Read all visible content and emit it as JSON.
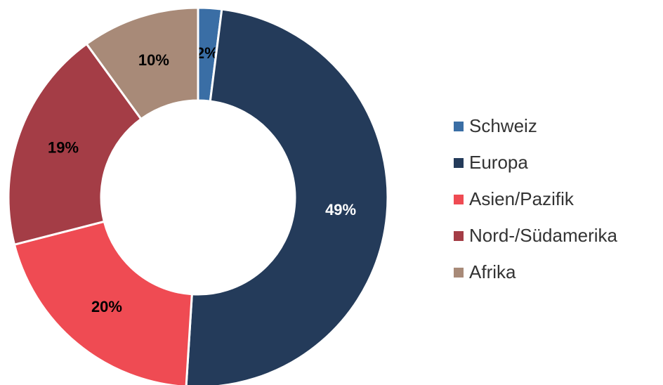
{
  "chart_data": {
    "type": "pie",
    "donut": true,
    "categories": [
      "Schweiz",
      "Europa",
      "Asien/Pazifik",
      "Nord-/Südamerika",
      "Afrika"
    ],
    "values": [
      2,
      49,
      20,
      19,
      10
    ],
    "value_labels": [
      "2%",
      "49%",
      "20%",
      "19%",
      "10%"
    ],
    "colors": [
      "#3a6ea5",
      "#243b5a",
      "#ef4b53",
      "#a43d46",
      "#a88a78"
    ],
    "label_colors": [
      "#000000",
      "#ffffff",
      "#000000",
      "#000000",
      "#000000"
    ],
    "legend": "right"
  }
}
